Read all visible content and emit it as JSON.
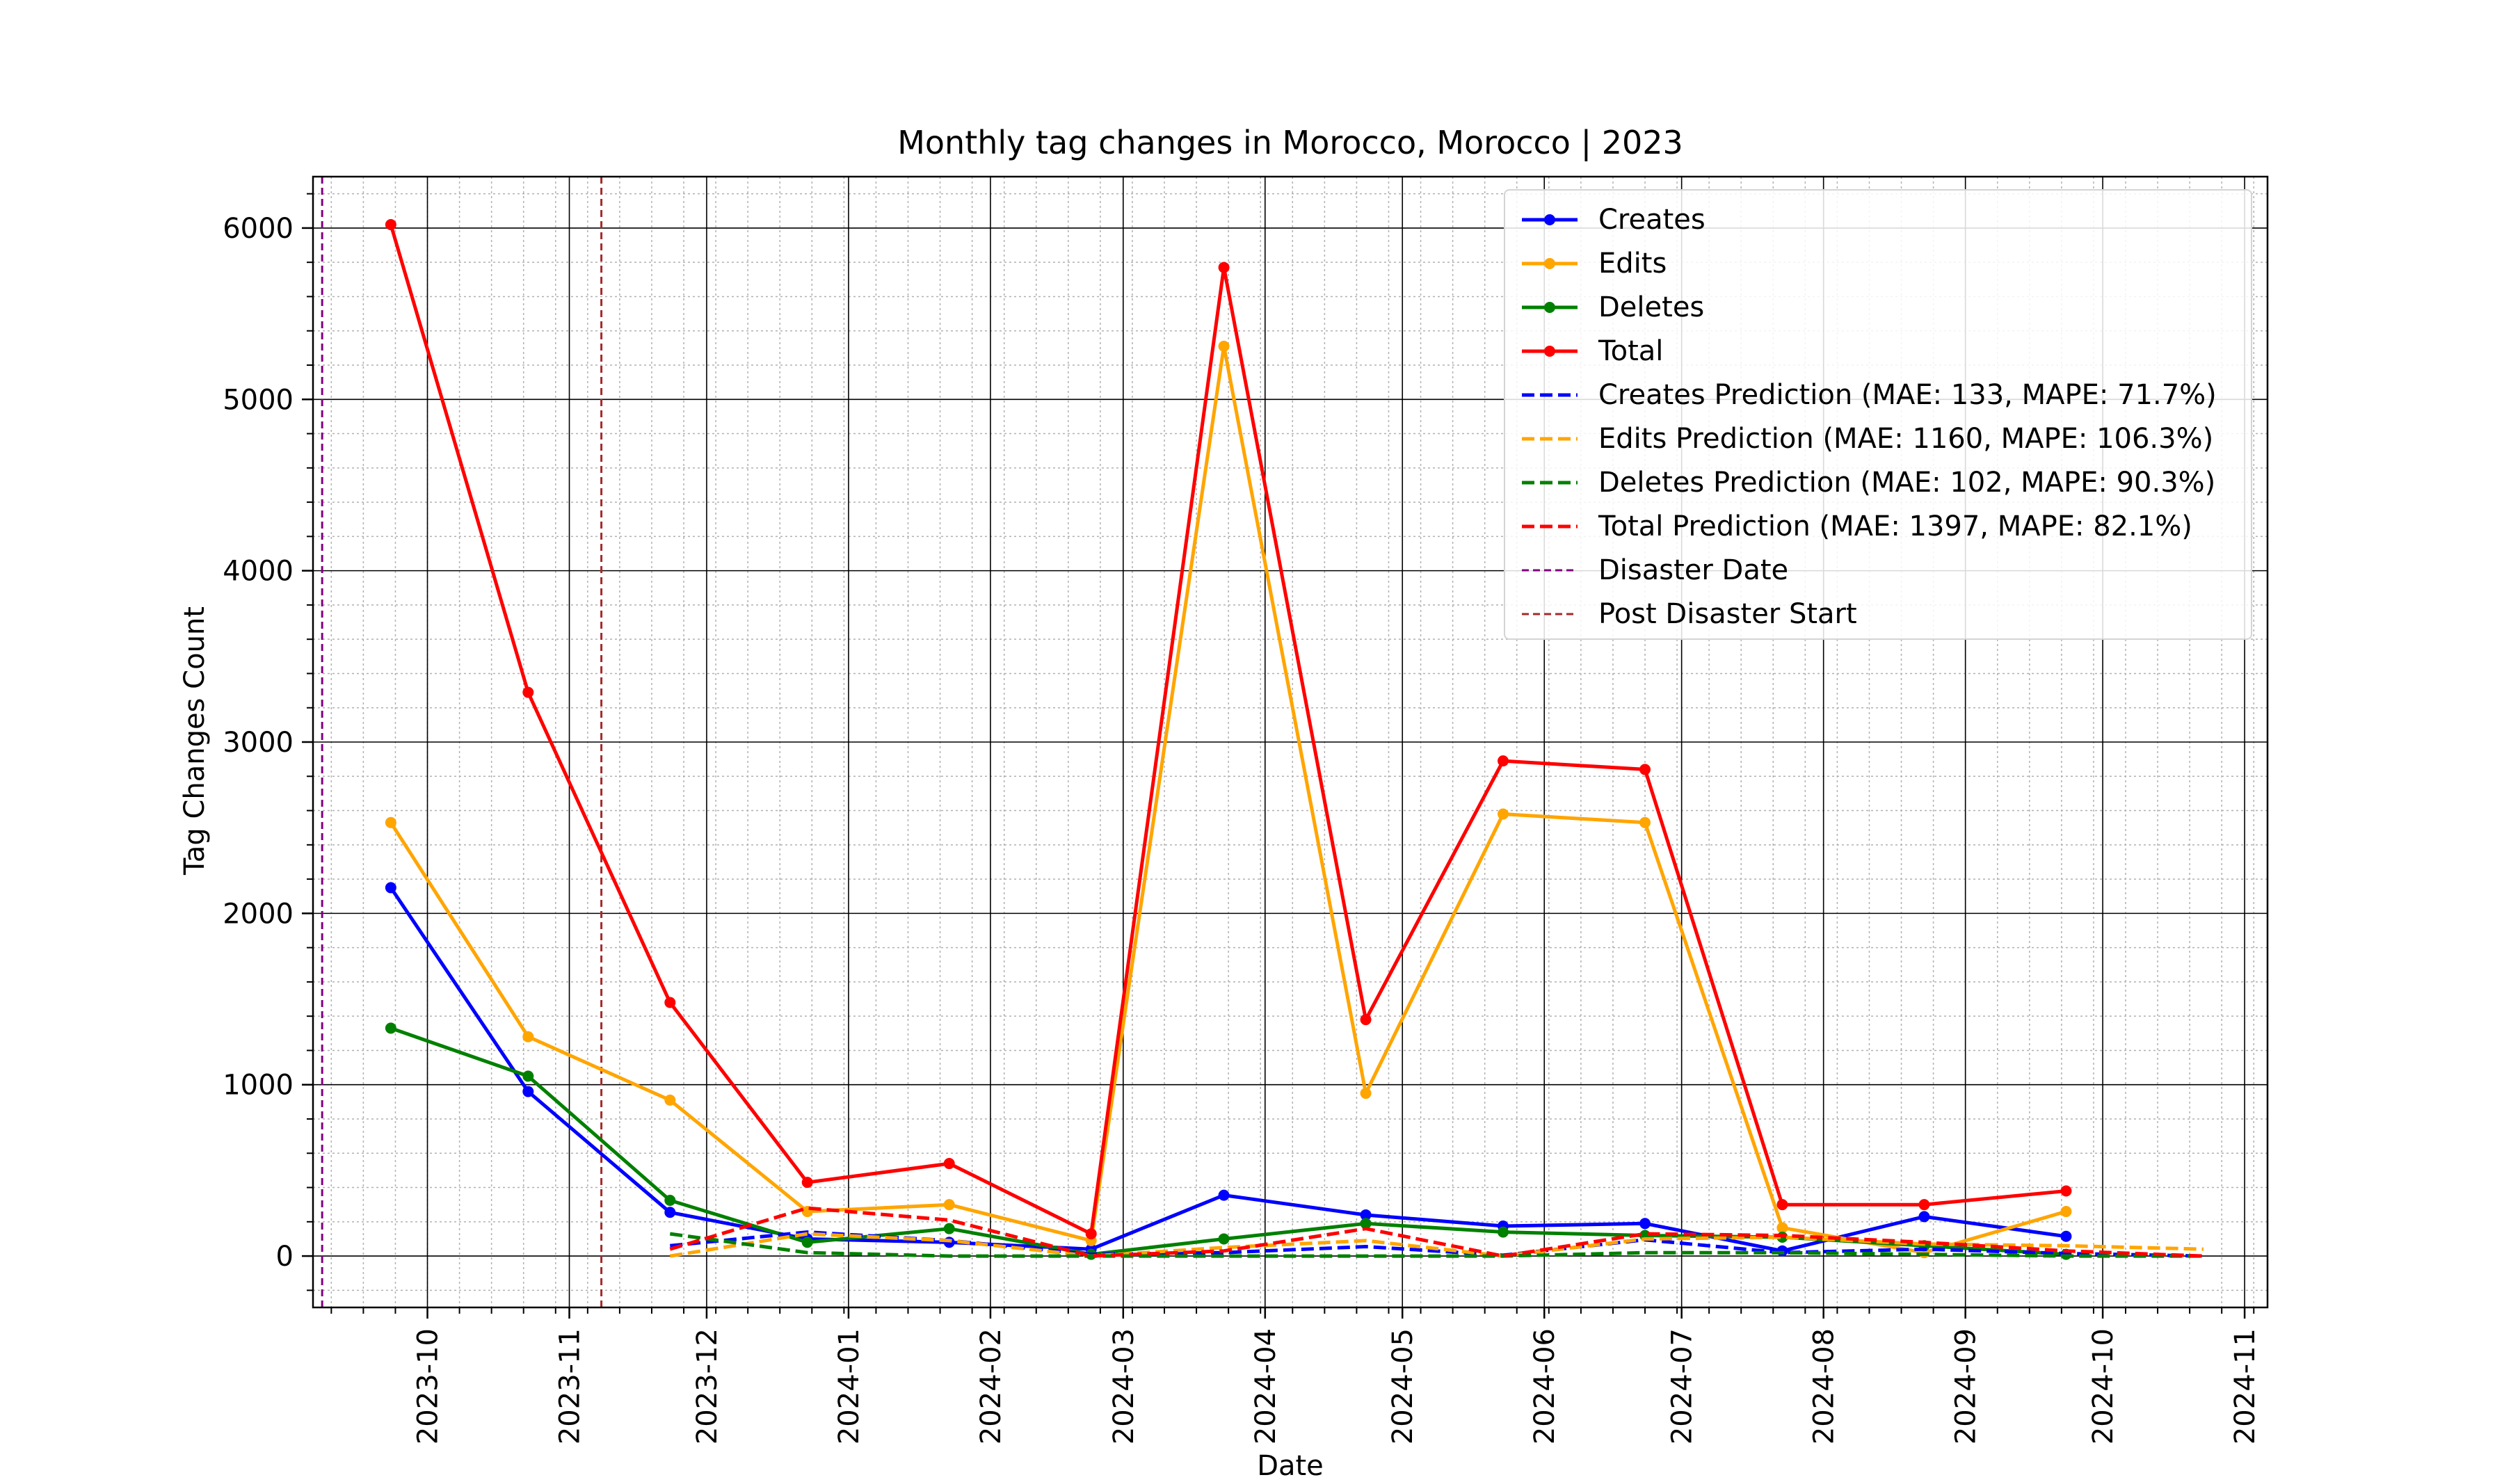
{
  "chart_data": {
    "type": "line",
    "title": "Monthly tag changes in Morocco, Morocco | 2023",
    "xlabel": "Date",
    "ylabel": "Tag Changes Count",
    "xlim": [
      "2023-09-06",
      "2024-11-06"
    ],
    "ylim": [
      -300,
      6300
    ],
    "x_ticks": [
      "2023-10",
      "2023-11",
      "2023-12",
      "2024-01",
      "2024-02",
      "2024-03",
      "2024-04",
      "2024-05",
      "2024-06",
      "2024-07",
      "2024-08",
      "2024-09",
      "2024-10",
      "2024-11"
    ],
    "y_ticks": [
      0,
      1000,
      2000,
      3000,
      4000,
      5000,
      6000
    ],
    "grid": true,
    "legend_position": "top-right",
    "series": [
      {
        "name": "Creates",
        "color": "#0000ff",
        "style": "solid",
        "markers": true,
        "x": [
          "2023-09-23",
          "2023-10-23",
          "2023-11-23",
          "2023-12-23",
          "2024-01-23",
          "2024-02-23",
          "2024-03-23",
          "2024-04-23",
          "2024-05-23",
          "2024-06-23",
          "2024-07-23",
          "2024-08-23",
          "2024-09-23"
        ],
        "values": [
          2150,
          960,
          255,
          100,
          80,
          40,
          355,
          240,
          175,
          190,
          30,
          230,
          115
        ]
      },
      {
        "name": "Edits",
        "color": "#ffa500",
        "style": "solid",
        "markers": true,
        "x": [
          "2023-09-23",
          "2023-10-23",
          "2023-11-23",
          "2023-12-23",
          "2024-01-23",
          "2024-02-23",
          "2024-03-23",
          "2024-04-23",
          "2024-05-23",
          "2024-06-23",
          "2024-07-23",
          "2024-08-23",
          "2024-09-23"
        ],
        "values": [
          2530,
          1280,
          910,
          260,
          300,
          90,
          5310,
          950,
          2580,
          2530,
          165,
          20,
          260
        ]
      },
      {
        "name": "Deletes",
        "color": "#008000",
        "style": "solid",
        "markers": true,
        "x": [
          "2023-09-23",
          "2023-10-23",
          "2023-11-23",
          "2023-12-23",
          "2024-01-23",
          "2024-02-23",
          "2024-03-23",
          "2024-04-23",
          "2024-05-23",
          "2024-06-23",
          "2024-07-23",
          "2024-08-23",
          "2024-09-23"
        ],
        "values": [
          1330,
          1050,
          325,
          80,
          160,
          10,
          100,
          190,
          140,
          120,
          110,
          60,
          10
        ]
      },
      {
        "name": "Total",
        "color": "#ff0000",
        "style": "solid",
        "markers": true,
        "x": [
          "2023-09-23",
          "2023-10-23",
          "2023-11-23",
          "2023-12-23",
          "2024-01-23",
          "2024-02-23",
          "2024-03-23",
          "2024-04-23",
          "2024-05-23",
          "2024-06-23",
          "2024-07-23",
          "2024-08-23",
          "2024-09-23"
        ],
        "values": [
          6020,
          3290,
          1480,
          430,
          540,
          130,
          5770,
          1380,
          2890,
          2840,
          300,
          300,
          380
        ]
      },
      {
        "name": "Creates Prediction (MAE: 133, MAPE: 71.7%)",
        "color": "#0000ff",
        "style": "dashed",
        "markers": false,
        "x": [
          "2023-11-23",
          "2023-12-23",
          "2024-01-23",
          "2024-02-23",
          "2024-03-23",
          "2024-04-23",
          "2024-05-23",
          "2024-06-23",
          "2024-07-23",
          "2024-08-23",
          "2024-09-23",
          "2024-10-23"
        ],
        "values": [
          60,
          140,
          90,
          10,
          20,
          55,
          5,
          95,
          20,
          40,
          15,
          0
        ]
      },
      {
        "name": "Edits Prediction (MAE: 1160, MAPE: 106.3%)",
        "color": "#ffa500",
        "style": "dashed",
        "markers": false,
        "x": [
          "2023-11-23",
          "2023-12-23",
          "2024-01-23",
          "2024-02-23",
          "2024-03-23",
          "2024-04-23",
          "2024-05-23",
          "2024-06-23",
          "2024-07-23",
          "2024-08-23",
          "2024-09-23",
          "2024-10-23"
        ],
        "values": [
          0,
          130,
          90,
          0,
          50,
          90,
          0,
          100,
          110,
          70,
          60,
          40
        ]
      },
      {
        "name": "Deletes Prediction (MAE: 102, MAPE: 90.3%)",
        "color": "#008000",
        "style": "dashed",
        "markers": false,
        "x": [
          "2023-11-23",
          "2023-12-23",
          "2024-01-23",
          "2024-02-23",
          "2024-03-23",
          "2024-04-23",
          "2024-05-23",
          "2024-06-23",
          "2024-07-23",
          "2024-08-23",
          "2024-09-23",
          "2024-10-23"
        ],
        "values": [
          130,
          20,
          0,
          0,
          0,
          0,
          0,
          20,
          20,
          10,
          0,
          0
        ]
      },
      {
        "name": "Total Prediction (MAE: 1397, MAPE: 82.1%)",
        "color": "#ff0000",
        "style": "dashed",
        "markers": false,
        "x": [
          "2023-11-23",
          "2023-12-23",
          "2024-01-23",
          "2024-02-23",
          "2024-03-23",
          "2024-04-23",
          "2024-05-23",
          "2024-06-23",
          "2024-07-23",
          "2024-08-23",
          "2024-09-23",
          "2024-10-23"
        ],
        "values": [
          40,
          280,
          210,
          0,
          30,
          160,
          0,
          130,
          120,
          80,
          30,
          0
        ]
      }
    ],
    "vertical_lines": [
      {
        "name": "Disaster Date",
        "x": "2023-09-08",
        "color": "#800080",
        "style": "dashed"
      },
      {
        "name": "Post Disaster Start",
        "x": "2023-11-08",
        "color": "#a52a2a",
        "style": "dashed"
      }
    ]
  }
}
